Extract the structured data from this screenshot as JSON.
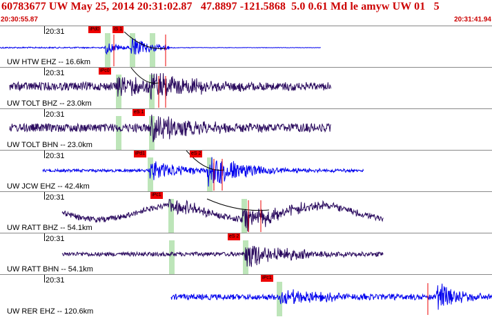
{
  "header": {
    "title": "60783677 UW May 25, 2014 20:31:02.87   47.8897 -121.5868  5.0 0.61 Md le amyw UW 01   5",
    "start_time": "20:30:55.87",
    "end_time": "20:31:41.94"
  },
  "colors": {
    "header_text": "#cc0000",
    "trace_blue": "#0000ee",
    "trace_purple": "#2a0a5e",
    "pick_box": "#ee0000",
    "pick_band": "#bde5b9"
  },
  "panels": [
    {
      "time": "20:31",
      "label": "UW HTW EHZ -- 16.6km",
      "color": "blue",
      "picks": [
        {
          "text": "iPd0"
        },
        {
          "text": "iS 1"
        }
      ]
    },
    {
      "time": "20:31",
      "label": "UW TOLT BHZ -- 23.0km",
      "color": "purple",
      "picks": [
        {
          "text": "iPc0"
        }
      ]
    },
    {
      "time": "20:31",
      "label": "UW TOLT BHN -- 23.0km",
      "color": "purple",
      "picks": [
        {
          "text": "eS 1"
        }
      ]
    },
    {
      "time": "20:31",
      "label": "UW JCW EHZ -- 42.4km",
      "color": "blue",
      "picks": [
        {
          "text": "iPd1"
        },
        {
          "text": "eS 2"
        }
      ]
    },
    {
      "time": "20:31",
      "label": "UW RATT BHZ -- 54.1km",
      "color": "purple",
      "picks": [
        {
          "text": "iPc1"
        }
      ]
    },
    {
      "time": "20:31",
      "label": "UW RATT BHN -- 54.1km",
      "color": "purple",
      "picks": [
        {
          "text": "eS 2"
        }
      ]
    },
    {
      "time": "20:31",
      "label": "UW RER EHZ -- 120.6km",
      "color": "blue",
      "picks": [
        {
          "text": "iPc1"
        }
      ]
    }
  ]
}
